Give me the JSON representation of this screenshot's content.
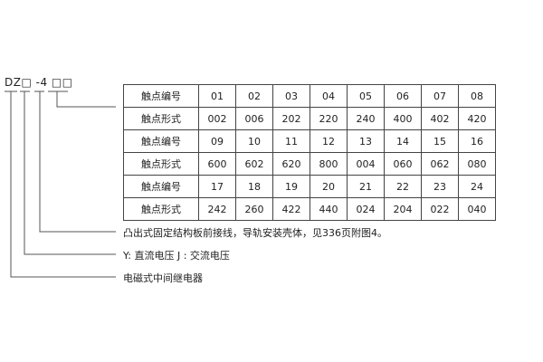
{
  "model_code": "DZ□ -4 □□",
  "table": {
    "rows": [
      [
        "触点编号",
        "01",
        "02",
        "03",
        "04",
        "05",
        "06",
        "07",
        "08"
      ],
      [
        "触点形式",
        "002",
        "006",
        "202",
        "220",
        "240",
        "400",
        "402",
        "420"
      ],
      [
        "触点编号",
        "09",
        "10",
        "11",
        "12",
        "13",
        "14",
        "15",
        "16"
      ],
      [
        "触点形式",
        "600",
        "602",
        "620",
        "800",
        "004",
        "060",
        "062",
        "080"
      ],
      [
        "触点编号",
        "17",
        "18",
        "19",
        "20",
        "21",
        "22",
        "23",
        "24"
      ],
      [
        "触点形式",
        "242",
        "260",
        "422",
        "440",
        "024",
        "204",
        "022",
        "040"
      ]
    ]
  },
  "descriptions": [
    "凸出式固定结构板前接线，导轨安装壳体，见336页附图4。",
    "Y: 直流电压   J : 交流电压",
    "电磁式中间继电器"
  ]
}
